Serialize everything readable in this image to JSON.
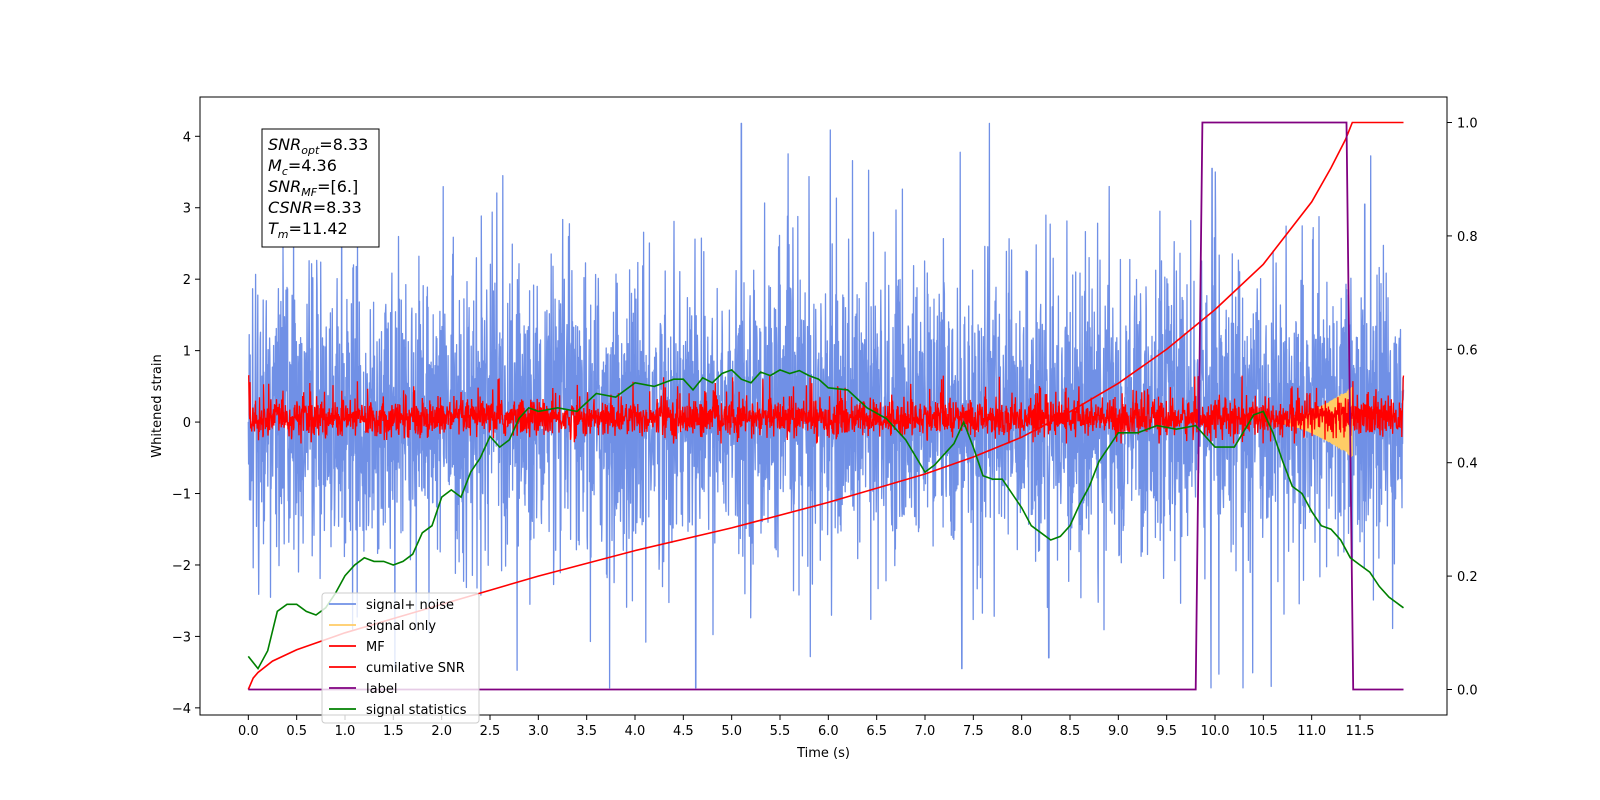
{
  "chart_data": {
    "type": "line",
    "title": "",
    "xlabel": "Time (s)",
    "ylabel": "Whitened strain",
    "y2label": "",
    "xlim": [
      -0.5,
      12.4
    ],
    "ylim": [
      -4.1,
      4.55
    ],
    "y2lim": [
      -0.045,
      1.045
    ],
    "xticks": [
      "0.0",
      "0.5",
      "1.0",
      "1.5",
      "2.0",
      "2.5",
      "3.0",
      "3.5",
      "4.0",
      "4.5",
      "5.0",
      "5.5",
      "6.0",
      "6.5",
      "7.0",
      "7.5",
      "8.0",
      "8.5",
      "9.0",
      "9.5",
      "10.0",
      "10.5",
      "11.0",
      "11.5"
    ],
    "yticks": [
      "4",
      "3",
      "2",
      "1",
      "0",
      "−1",
      "−2",
      "−3",
      "−4"
    ],
    "y2ticks": [
      "1.0",
      "0.8",
      "0.6",
      "0.4",
      "0.2",
      "0.0"
    ],
    "annotation": [
      {
        "sym": "SNR",
        "sub": "opt",
        "value": "=8.33"
      },
      {
        "sym": "M",
        "sub": "c",
        "value": "=4.36"
      },
      {
        "sym": "SNR",
        "sub": "MF",
        "value": "=[6.]"
      },
      {
        "sym": "CSNR",
        "sub": "",
        "value": "=8.33"
      },
      {
        "sym": "T",
        "sub": "m",
        "value": "=11.42"
      }
    ],
    "legend": {
      "placement": "lower-left",
      "entries": [
        {
          "label": "signal+ noise",
          "color": "#7090e6"
        },
        {
          "label": "signal only",
          "color": "#ffcc66"
        },
        {
          "label": "MF",
          "color": "#ff0000"
        },
        {
          "label": "cumilative SNR",
          "color": "#ff0000"
        },
        {
          "label": "label",
          "color": "#800080"
        },
        {
          "label": "signal statistics",
          "color": "#008000"
        }
      ]
    },
    "series": [
      {
        "name": "cumilative SNR",
        "axis": "right",
        "color": "#ff0000",
        "x": [
          0.0,
          0.05,
          0.1,
          0.25,
          0.5,
          1.0,
          2.0,
          3.0,
          4.0,
          5.0,
          6.0,
          7.0,
          7.5,
          8.0,
          8.5,
          9.0,
          9.5,
          10.0,
          10.5,
          11.0,
          11.2,
          11.35,
          11.42,
          11.5,
          11.6,
          11.95
        ],
        "values": [
          0.0,
          0.02,
          0.03,
          0.05,
          0.07,
          0.1,
          0.15,
          0.2,
          0.245,
          0.285,
          0.33,
          0.38,
          0.41,
          0.445,
          0.49,
          0.54,
          0.6,
          0.67,
          0.75,
          0.86,
          0.92,
          0.97,
          1.0,
          1.0,
          1.0,
          1.0
        ]
      },
      {
        "name": "label",
        "axis": "right",
        "color": "#800080",
        "x": [
          0.0,
          9.8,
          9.87,
          11.36,
          11.43,
          11.95
        ],
        "values": [
          0.0,
          0.0,
          1.0,
          1.0,
          0.0,
          0.0
        ]
      },
      {
        "name": "signal statistics",
        "axis": "left",
        "color": "#008000",
        "x": [
          0.0,
          0.1,
          0.2,
          0.3,
          0.4,
          0.5,
          0.6,
          0.7,
          0.8,
          0.9,
          1.0,
          1.1,
          1.2,
          1.3,
          1.4,
          1.5,
          1.6,
          1.7,
          1.8,
          1.9,
          2.0,
          2.1,
          2.2,
          2.3,
          2.4,
          2.5,
          2.6,
          2.7,
          2.8,
          2.9,
          3.0,
          3.2,
          3.4,
          3.6,
          3.8,
          4.0,
          4.2,
          4.4,
          4.5,
          4.6,
          4.7,
          4.8,
          4.9,
          5.0,
          5.1,
          5.2,
          5.3,
          5.4,
          5.5,
          5.6,
          5.7,
          5.8,
          5.9,
          6.0,
          6.2,
          6.4,
          6.6,
          6.8,
          7.0,
          7.1,
          7.2,
          7.3,
          7.4,
          7.5,
          7.6,
          7.7,
          7.8,
          8.0,
          8.1,
          8.2,
          8.3,
          8.4,
          8.5,
          8.6,
          8.7,
          8.8,
          8.9,
          9.0,
          9.2,
          9.4,
          9.6,
          9.8,
          10.0,
          10.2,
          10.4,
          10.5,
          10.6,
          10.7,
          10.8,
          10.9,
          11.0,
          11.1,
          11.2,
          11.3,
          11.4,
          11.5,
          11.6,
          11.7,
          11.8,
          11.9,
          11.95
        ],
        "values": [
          -3.28,
          -3.45,
          -3.2,
          -2.65,
          -2.55,
          -2.55,
          -2.65,
          -2.7,
          -2.6,
          -2.4,
          -2.15,
          -2.0,
          -1.9,
          -1.95,
          -1.95,
          -2.0,
          -1.95,
          -1.85,
          -1.55,
          -1.45,
          -1.05,
          -0.95,
          -1.05,
          -0.7,
          -0.5,
          -0.2,
          -0.35,
          -0.25,
          0.05,
          0.2,
          0.15,
          0.2,
          0.15,
          0.4,
          0.35,
          0.55,
          0.5,
          0.6,
          0.6,
          0.45,
          0.62,
          0.55,
          0.68,
          0.73,
          0.6,
          0.55,
          0.7,
          0.65,
          0.73,
          0.68,
          0.72,
          0.65,
          0.6,
          0.48,
          0.45,
          0.2,
          0.05,
          -0.25,
          -0.7,
          -0.6,
          -0.45,
          -0.3,
          0.0,
          -0.35,
          -0.75,
          -0.8,
          -0.8,
          -1.2,
          -1.45,
          -1.55,
          -1.65,
          -1.6,
          -1.45,
          -1.15,
          -0.9,
          -0.55,
          -0.35,
          -0.15,
          -0.15,
          -0.05,
          -0.1,
          -0.05,
          -0.35,
          -0.35,
          0.1,
          0.15,
          -0.15,
          -0.55,
          -0.9,
          -1.0,
          -1.25,
          -1.45,
          -1.5,
          -1.65,
          -1.9,
          -2.0,
          -2.1,
          -2.3,
          -2.45,
          -2.55,
          -2.6
        ]
      },
      {
        "name": "signal+ noise",
        "axis": "left",
        "color": "#7090e6",
        "x_range": [
          0.0,
          11.95
        ],
        "envelope_typical": [
          -1.7,
          1.7
        ],
        "extremes": {
          "max": 4.18,
          "min": -3.72
        }
      },
      {
        "name": "MF",
        "axis": "left",
        "color": "#ff0000",
        "x_range": [
          0.0,
          11.95
        ],
        "envelope_typical": [
          -0.25,
          0.45
        ],
        "start_value": 1.0
      },
      {
        "name": "signal only",
        "axis": "left",
        "color": "#ffcc66",
        "x_range": [
          10.6,
          11.42
        ],
        "envelope_peak": 0.5
      }
    ]
  }
}
